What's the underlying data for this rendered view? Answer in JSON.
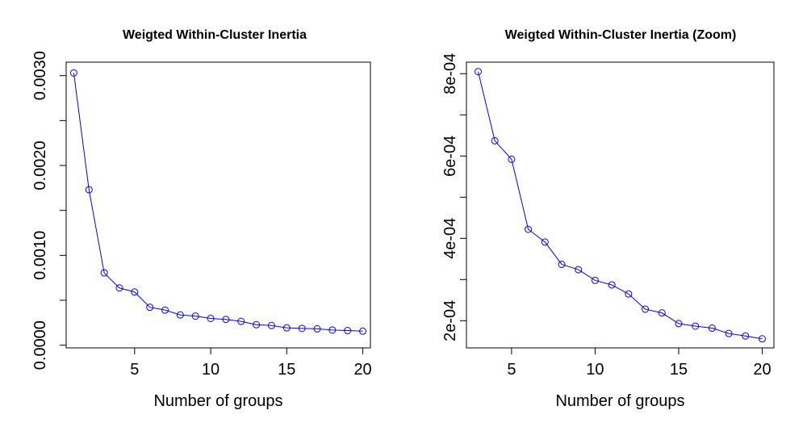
{
  "chart_data": [
    {
      "type": "line",
      "title": "Weigted Within-Cluster Inertia",
      "xlabel": "Number of groups",
      "ylabel": "",
      "xlim": [
        0.5,
        20.5
      ],
      "ylim": [
        -3e-05,
        0.00315
      ],
      "xticks": [
        5,
        10,
        15,
        20
      ],
      "xtick_labels": [
        "5",
        "10",
        "15",
        "20"
      ],
      "yticks": [
        0,
        0.0005,
        0.001,
        0.0015,
        0.002,
        0.0025,
        0.003
      ],
      "ytick_labels": [
        "0.0000",
        "",
        "0.0010",
        "",
        "0.0020",
        "",
        "0.0030"
      ],
      "grid": false,
      "series": [
        {
          "color": "#0000ff",
          "marker": "open-circle",
          "x": [
            1,
            2,
            3,
            4,
            5,
            6,
            7,
            8,
            9,
            10,
            11,
            12,
            13,
            14,
            15,
            16,
            17,
            18,
            19,
            20
          ],
          "y": [
            0.00303,
            0.00173,
            0.000805,
            0.000637,
            0.000592,
            0.000422,
            0.000391,
            0.000337,
            0.000324,
            0.000298,
            0.000287,
            0.000265,
            0.000228,
            0.000219,
            0.000193,
            0.000187,
            0.000182,
            0.000169,
            0.000163,
            0.000156
          ]
        }
      ]
    },
    {
      "type": "line",
      "title": "Weigted Within-Cluster Inertia (Zoom)",
      "xlabel": "Number of groups",
      "ylabel": "",
      "xlim": [
        2.3,
        20.7
      ],
      "ylim": [
        0.000134,
        0.000828
      ],
      "xticks": [
        5,
        10,
        15,
        20
      ],
      "xtick_labels": [
        "5",
        "10",
        "15",
        "20"
      ],
      "yticks": [
        0.0002,
        0.0003,
        0.0004,
        0.0005,
        0.0006,
        0.0007,
        0.0008
      ],
      "ytick_labels": [
        "2e-04",
        "",
        "4e-04",
        "",
        "6e-04",
        "",
        "8e-04"
      ],
      "grid": false,
      "series": [
        {
          "color": "#0000ff",
          "marker": "open-circle",
          "x": [
            3,
            4,
            5,
            6,
            7,
            8,
            9,
            10,
            11,
            12,
            13,
            14,
            15,
            16,
            17,
            18,
            19,
            20
          ],
          "y": [
            0.000805,
            0.000637,
            0.000592,
            0.000422,
            0.000391,
            0.000337,
            0.000324,
            0.000298,
            0.000287,
            0.000265,
            0.000228,
            0.000219,
            0.000193,
            0.000187,
            0.000182,
            0.000169,
            0.000163,
            0.000156
          ]
        }
      ]
    }
  ]
}
